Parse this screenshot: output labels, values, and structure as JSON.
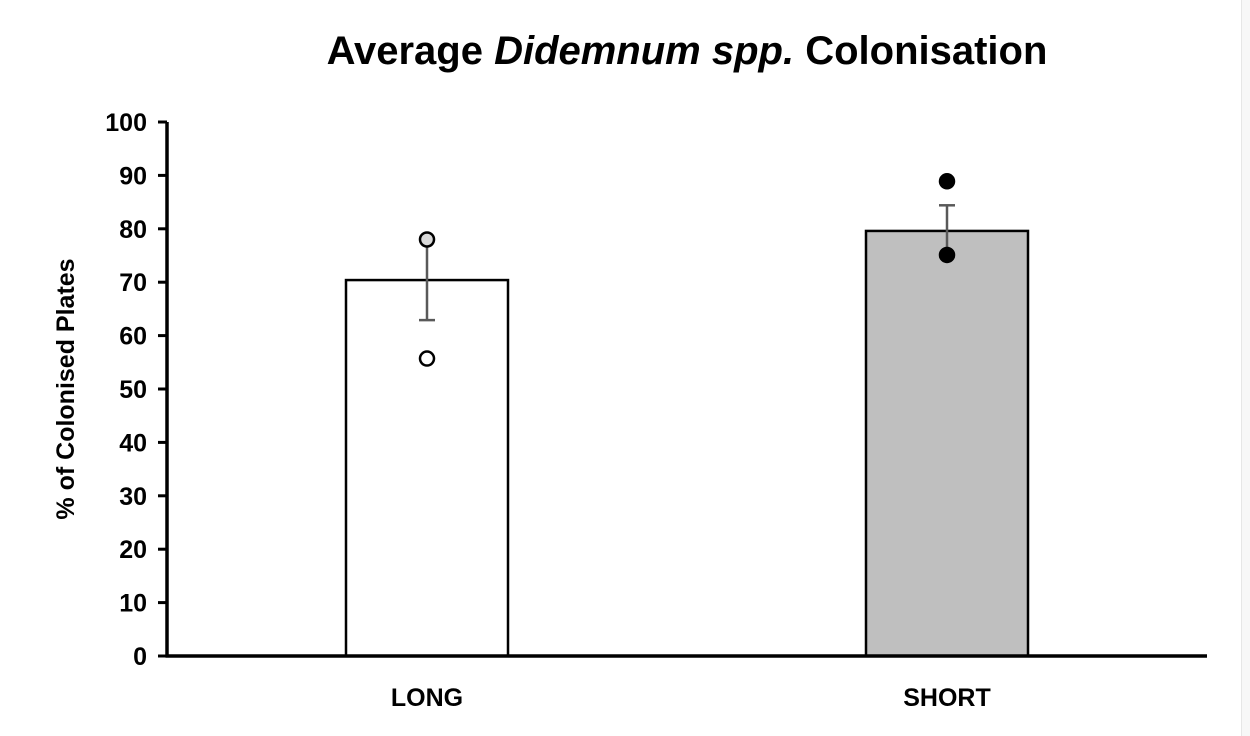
{
  "chart_data": {
    "type": "bar",
    "title_parts": [
      {
        "text": "Average ",
        "italic": false
      },
      {
        "text": "Didemnum spp.",
        "italic": true
      },
      {
        "text": " Colonisation",
        "italic": false
      }
    ],
    "xlabel": "",
    "ylabel": "% of Colonised Plates",
    "ylim": [
      0,
      100
    ],
    "yticks": [
      "0",
      "10",
      "20",
      "30",
      "40",
      "50",
      "60",
      "70",
      "80",
      "90",
      "100"
    ],
    "categories": [
      "LONG",
      "SHORT"
    ],
    "values": [
      70.4,
      79.6
    ],
    "errors": [
      7.5,
      4.8
    ],
    "bar_colors": [
      "#ffffff",
      "#bfbfbf"
    ],
    "points": [
      {
        "category": "LONG",
        "values": [
          78.0,
          55.7
        ],
        "fills": [
          "#d9d9d9",
          "#ffffff"
        ]
      },
      {
        "category": "SHORT",
        "values": [
          88.9,
          75.1
        ],
        "fills": [
          "#000000",
          "#000000"
        ]
      }
    ],
    "error_bar_color": "#595959",
    "grid": false,
    "legend": "none"
  }
}
